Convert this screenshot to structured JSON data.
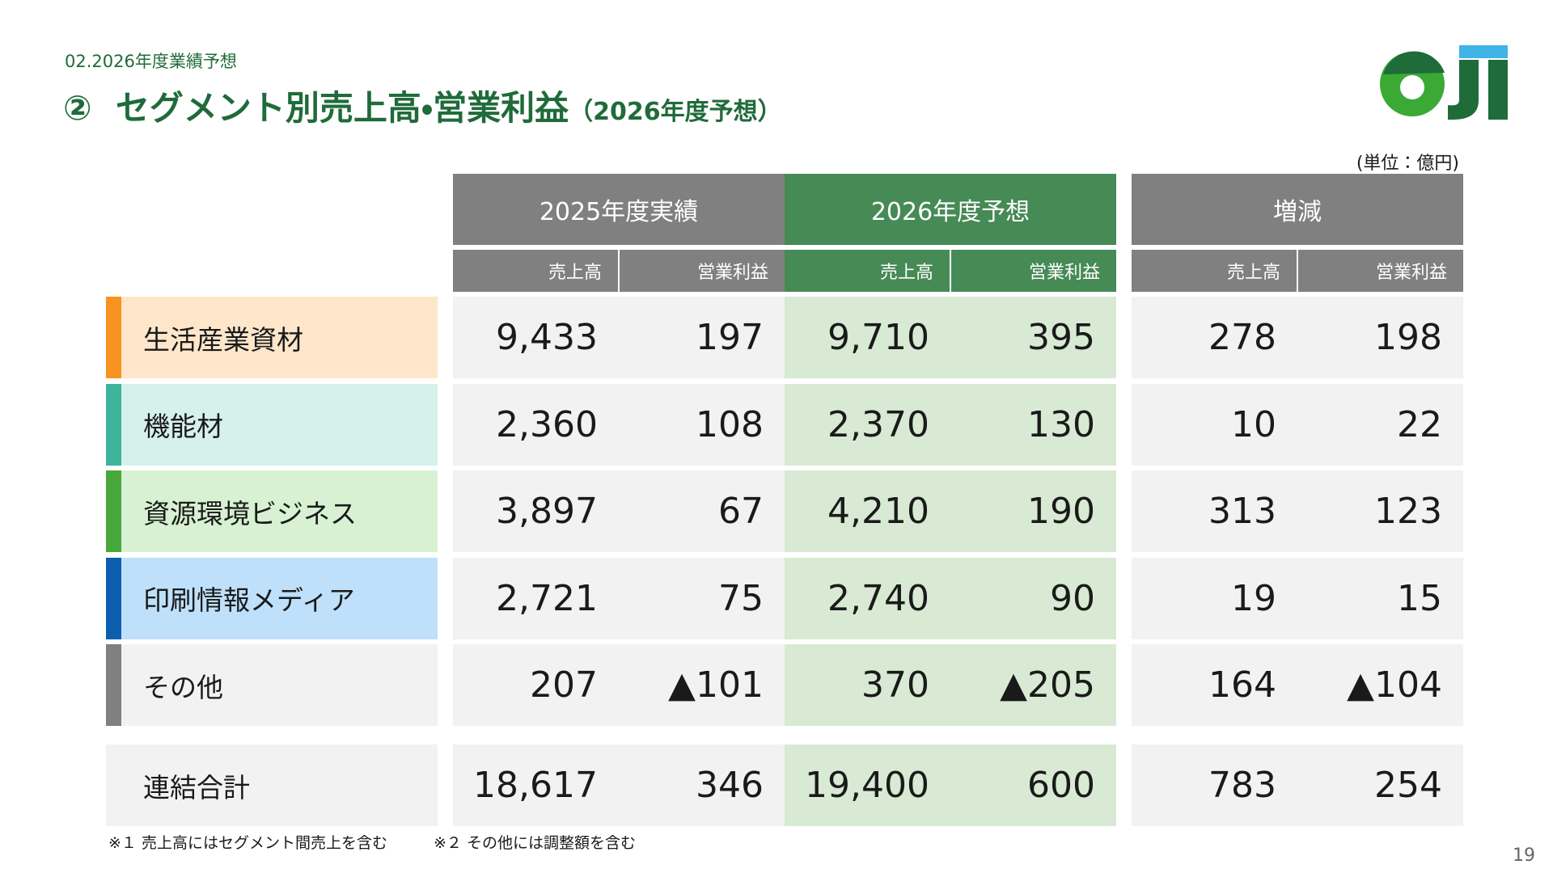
{
  "header": {
    "section": "02.2026年度業績予想",
    "number": "②",
    "title": "セグメント別売上高・営業利益",
    "title_suffix": "（2026年度予想）"
  },
  "unit": "(単位：億円)",
  "groups": [
    "2025年度実績",
    "2026年度予想",
    "増減"
  ],
  "subheaders": [
    "売上高",
    "営業利益",
    "売上高",
    "営業利益",
    "売上高",
    "営業利益"
  ],
  "rows": [
    {
      "label": "生活産業資材",
      "values": [
        "9,433",
        "197",
        "9,710",
        "395",
        "278",
        "198"
      ]
    },
    {
      "label": "機能材",
      "values": [
        "2,360",
        "108",
        "2,370",
        "130",
        "10",
        "22"
      ]
    },
    {
      "label": "資源環境ビジネス",
      "values": [
        "3,897",
        "67",
        "4,210",
        "190",
        "313",
        "123"
      ]
    },
    {
      "label": "印刷情報メディア",
      "values": [
        "2,721",
        "75",
        "2,740",
        "90",
        "19",
        "15"
      ]
    },
    {
      "label": "その他",
      "values": [
        "207",
        "▲101",
        "370",
        "▲205",
        "164",
        "▲104"
      ]
    }
  ],
  "total": {
    "label": "連結合計",
    "values": [
      "18,617",
      "346",
      "19,400",
      "600",
      "783",
      "254"
    ]
  },
  "footnotes": [
    "※１ 売上高にはセグメント間売上を含む",
    "※２ その他には調整額を含む"
  ],
  "page_number": "19"
}
